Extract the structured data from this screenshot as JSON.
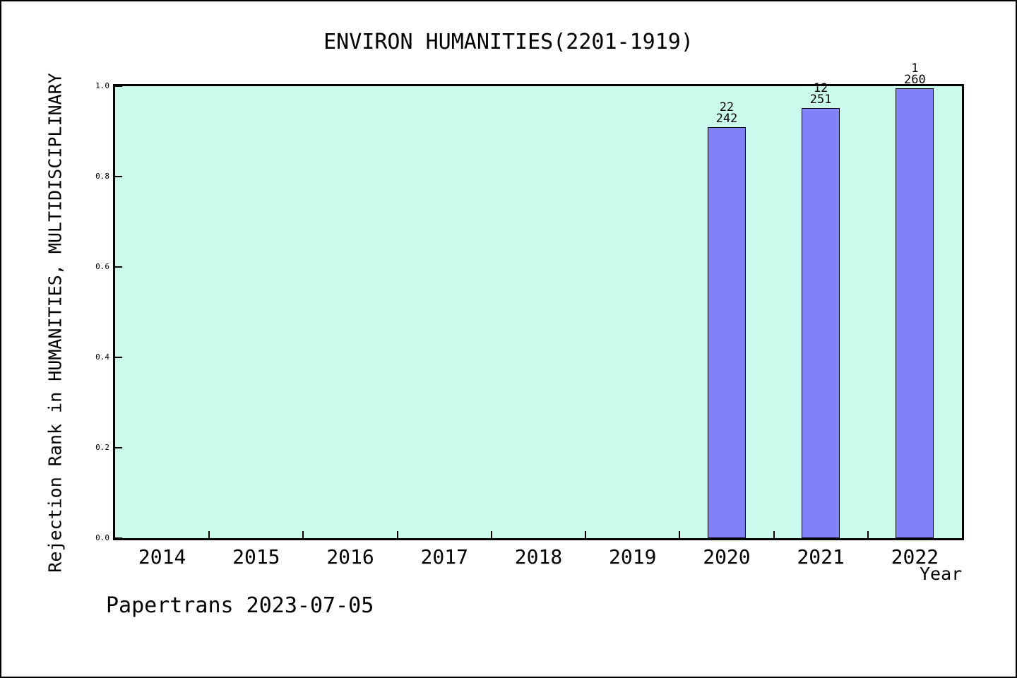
{
  "chart_data": {
    "type": "bar",
    "title": "ENVIRON HUMANITIES(2201-1919)",
    "xlabel": "Year",
    "ylabel": "Rejection Rank in HUMANITIES, MULTIDISCIPLINARY",
    "categories": [
      "2014",
      "2015",
      "2016",
      "2017",
      "2018",
      "2019",
      "2020",
      "2021",
      "2022"
    ],
    "values": [
      null,
      null,
      null,
      null,
      null,
      null,
      0.909,
      0.952,
      0.996
    ],
    "bar_labels": [
      null,
      null,
      null,
      null,
      null,
      null,
      {
        "numerator": "22",
        "denominator": "242"
      },
      {
        "numerator": "12",
        "denominator": "251"
      },
      {
        "numerator": "1",
        "denominator": "260"
      }
    ],
    "yticks": [
      "0.0",
      "0.2",
      "0.4",
      "0.6",
      "0.8",
      "1.0"
    ],
    "ylim": [
      0,
      1
    ],
    "grid": false,
    "legend": "none",
    "colors": {
      "bar_fill": "#8181fa",
      "bar_edge": "#000000",
      "plot_background": "#c9faec",
      "text": "#000000"
    }
  },
  "footer": {
    "text": "Papertrans 2023-07-05"
  }
}
